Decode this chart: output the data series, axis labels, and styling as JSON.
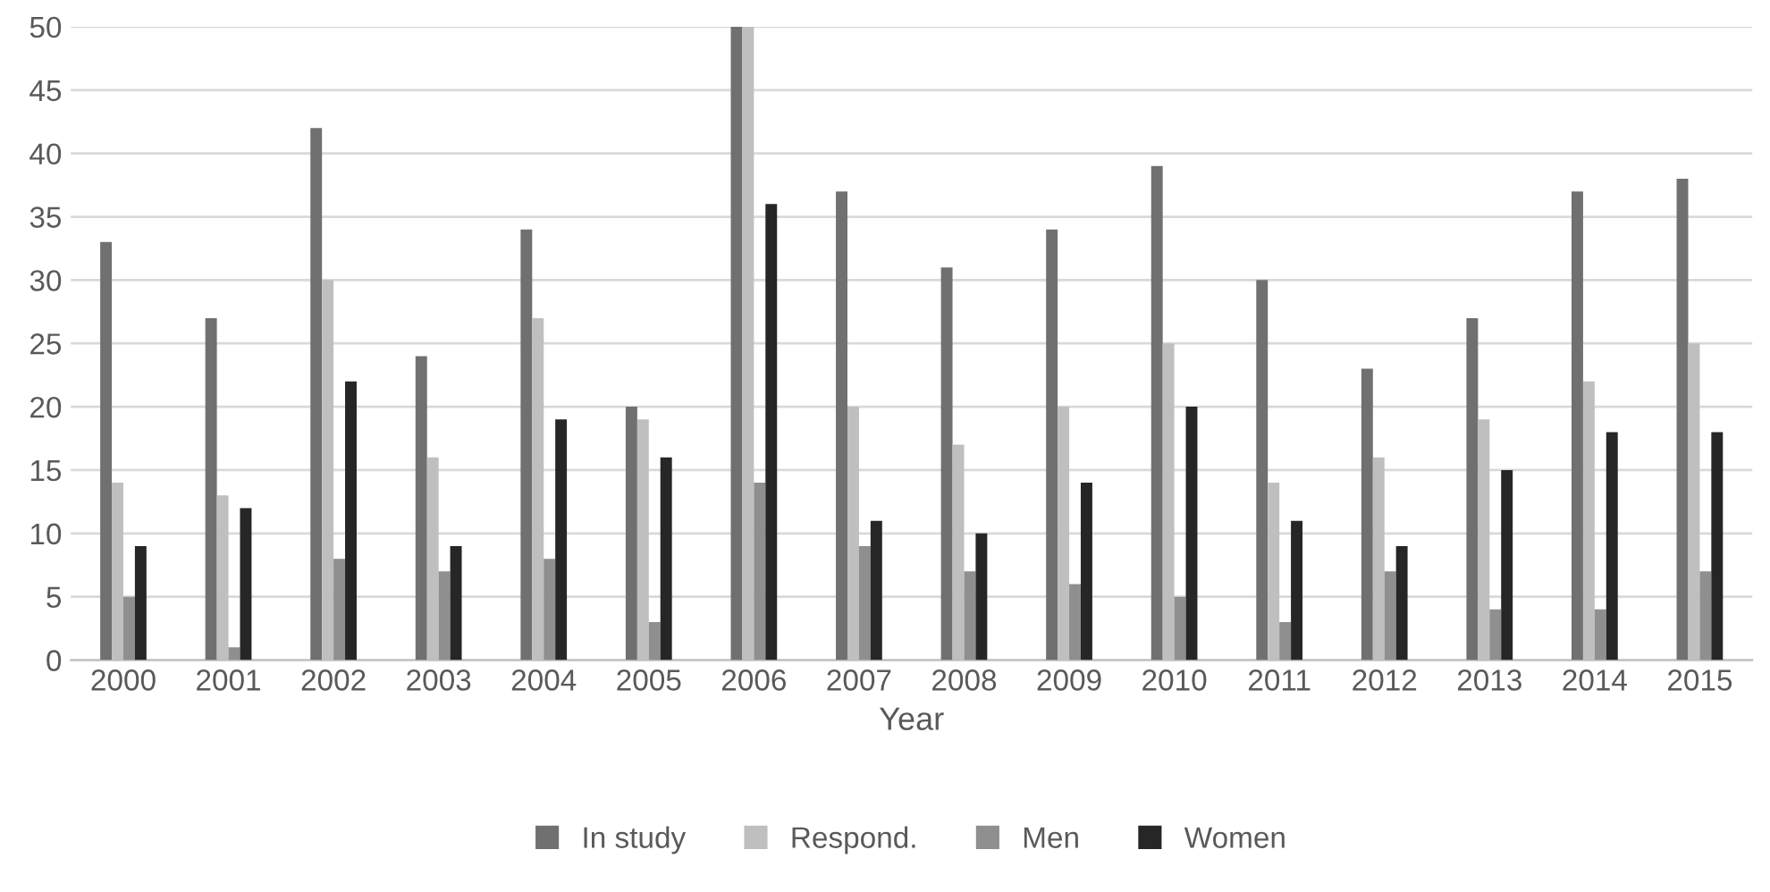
{
  "chart_data": {
    "type": "bar",
    "xlabel": "Year",
    "categories": [
      "2000",
      "2001",
      "2002",
      "2003",
      "2004",
      "2005",
      "2006",
      "2007",
      "2008",
      "2009",
      "2010",
      "2011",
      "2012",
      "2013",
      "2014",
      "2015"
    ],
    "series": [
      {
        "name": "In study",
        "color": "#707070",
        "values": [
          33,
          27,
          42,
          24,
          34,
          20,
          50,
          37,
          31,
          34,
          39,
          30,
          23,
          27,
          37,
          38
        ]
      },
      {
        "name": "Respond.",
        "color": "#bfbfbf",
        "values": [
          14,
          13,
          30,
          16,
          27,
          19,
          50,
          20,
          17,
          20,
          25,
          14,
          16,
          19,
          22,
          25
        ]
      },
      {
        "name": "Men",
        "color": "#8f8f8f",
        "values": [
          5,
          1,
          8,
          7,
          8,
          3,
          14,
          9,
          7,
          6,
          5,
          3,
          7,
          4,
          4,
          7
        ]
      },
      {
        "name": "Women",
        "color": "#262626",
        "values": [
          9,
          12,
          22,
          9,
          19,
          16,
          36,
          11,
          10,
          14,
          20,
          11,
          9,
          15,
          18,
          18
        ]
      }
    ],
    "ylim": [
      0,
      50
    ],
    "yticks": [
      0,
      5,
      10,
      15,
      20,
      25,
      30,
      35,
      40,
      45,
      50
    ],
    "grid": "y",
    "legend": "bottom"
  }
}
